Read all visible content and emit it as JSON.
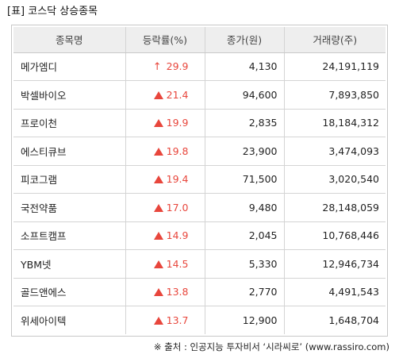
{
  "title": "[표] 코스닥 상승종목",
  "columns": [
    "종목명",
    "등락률(%)",
    "종가(원)",
    "거래량(주)"
  ],
  "colors": {
    "up": "#e8463c",
    "header_bg": "#eeeeee",
    "border": "#c8c8c8"
  },
  "rows": [
    {
      "name": "메가엠디",
      "change_icon": "up-arrow-icon",
      "change": "29.9",
      "close": "4,130",
      "volume": "24,191,119"
    },
    {
      "name": "박셀바이오",
      "change_icon": "up-triangle-icon",
      "change": "21.4",
      "close": "94,600",
      "volume": "7,893,850"
    },
    {
      "name": "프로이천",
      "change_icon": "up-triangle-icon",
      "change": "19.9",
      "close": "2,835",
      "volume": "18,184,312"
    },
    {
      "name": "에스티큐브",
      "change_icon": "up-triangle-icon",
      "change": "19.8",
      "close": "23,900",
      "volume": "3,474,093"
    },
    {
      "name": "피코그램",
      "change_icon": "up-triangle-icon",
      "change": "19.4",
      "close": "71,500",
      "volume": "3,020,540"
    },
    {
      "name": "국전약품",
      "change_icon": "up-triangle-icon",
      "change": "17.0",
      "close": "9,480",
      "volume": "28,148,059"
    },
    {
      "name": "소프트캠프",
      "change_icon": "up-triangle-icon",
      "change": "14.9",
      "close": "2,045",
      "volume": "10,768,446"
    },
    {
      "name": "YBM넷",
      "change_icon": "up-triangle-icon",
      "change": "14.5",
      "close": "5,330",
      "volume": "12,946,734"
    },
    {
      "name": "골드앤에스",
      "change_icon": "up-triangle-icon",
      "change": "13.8",
      "close": "2,770",
      "volume": "4,491,543"
    },
    {
      "name": "위세아이텍",
      "change_icon": "up-triangle-icon",
      "change": "13.7",
      "close": "12,900",
      "volume": "1,648,704"
    }
  ],
  "footnote": "※ 출처 : 인공지능 투자비서 ‘시라씨로’ (www.rassiro.com)"
}
